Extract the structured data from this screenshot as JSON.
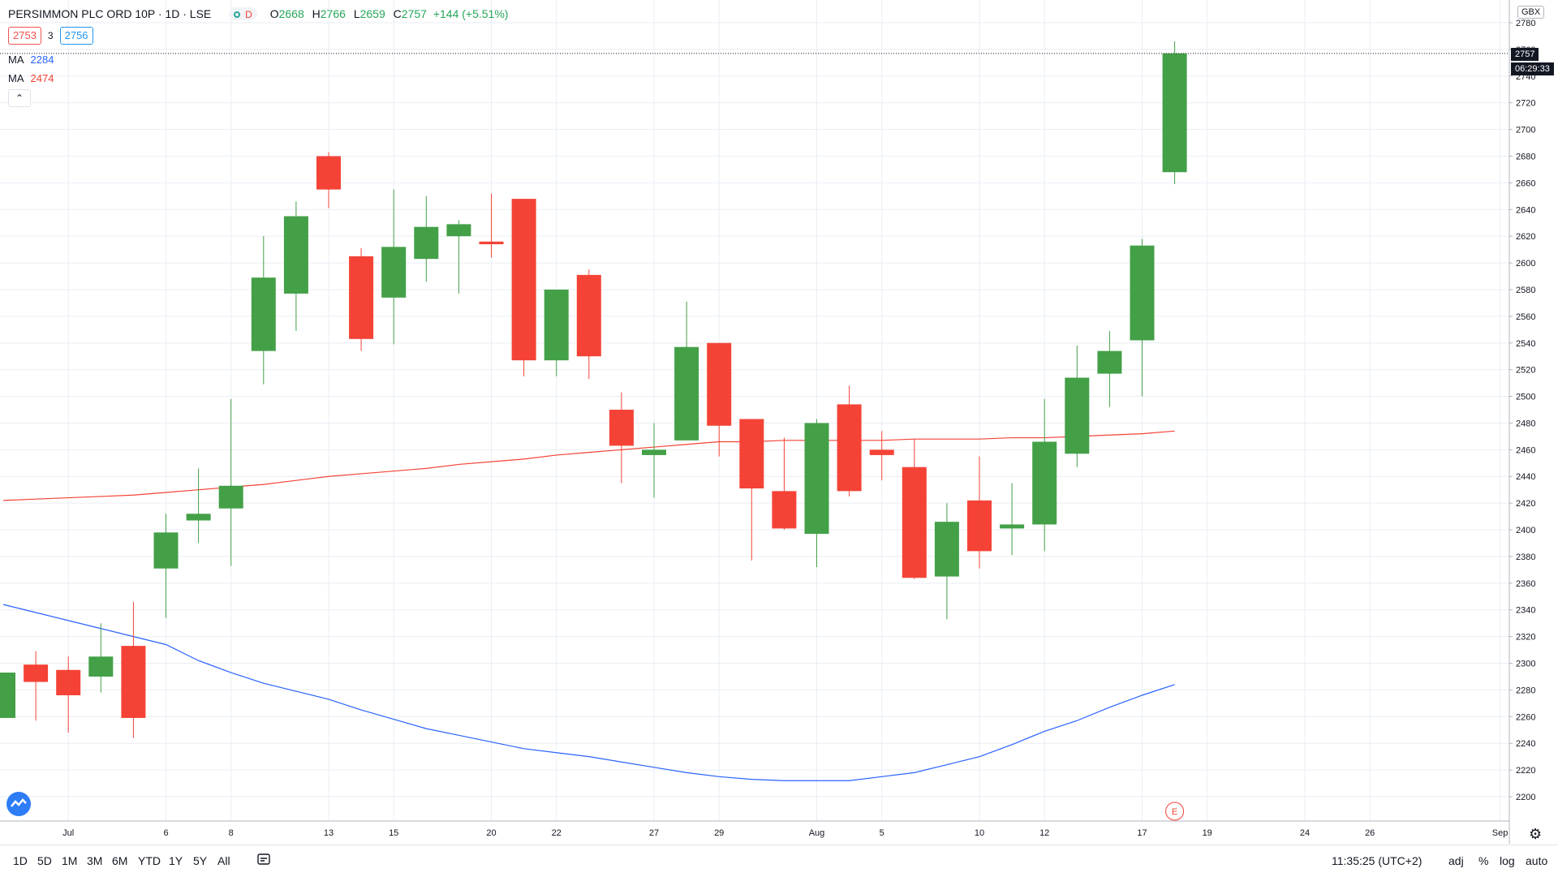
{
  "legend": {
    "title": "PERSIMMON PLC ORD 10P · 1D · LSE",
    "market_status_icon": "market-open-dot",
    "market_letter": "D",
    "open_label": "O",
    "open_value": "2668",
    "high_label": "H",
    "high_value": "2766",
    "low_label": "L",
    "low_value": "2659",
    "close_label": "C",
    "close_value": "2757",
    "change": "+144 (+5.51%)"
  },
  "bidask": {
    "bid": "2753",
    "spread": "3",
    "ask": "2756"
  },
  "indicators": [
    {
      "label": "MA",
      "value": "2284",
      "color": "#2962ff"
    },
    {
      "label": "MA",
      "value": "2474",
      "color": "#f44336"
    }
  ],
  "collapse_icon": "chevron-up-icon",
  "price_axis": {
    "currency": "GBX",
    "last_price": "2757",
    "countdown": "06:29:33"
  },
  "bottom_bar": {
    "timeframes": [
      "1D",
      "5D",
      "1M",
      "3M",
      "6M",
      "YTD",
      "1Y",
      "5Y",
      "All"
    ],
    "date_range_icon": "calendar-range-icon",
    "clock": "11:35:25 (UTC+2)",
    "options": [
      "adj",
      "%",
      "log",
      "auto"
    ]
  },
  "colors": {
    "up": "#43a047",
    "down": "#f44336",
    "ma_fast": "#2962ff",
    "ma_slow": "#f44336",
    "grid": "#e9eef5"
  },
  "chart_data": {
    "type": "candlestick",
    "title": "PERSIMMON PLC ORD 10P · 1D · LSE",
    "ylim": [
      2190,
      2790
    ],
    "y_ticks": [
      2200,
      2220,
      2240,
      2260,
      2280,
      2300,
      2320,
      2340,
      2360,
      2380,
      2400,
      2420,
      2440,
      2460,
      2480,
      2500,
      2520,
      2540,
      2560,
      2580,
      2600,
      2620,
      2640,
      2660,
      2680,
      2700,
      2720,
      2740,
      2760,
      2780
    ],
    "x_ticks": [
      "Jul",
      "6",
      "8",
      "13",
      "15",
      "20",
      "22",
      "27",
      "29",
      "Aug",
      "5",
      "10",
      "12",
      "17",
      "19",
      "24",
      "26",
      "Sep"
    ],
    "x_tick_dates": [
      "2020-07-01",
      "2020-07-06",
      "2020-07-08",
      "2020-07-13",
      "2020-07-15",
      "2020-07-20",
      "2020-07-22",
      "2020-07-27",
      "2020-07-29",
      "2020-08-03",
      "2020-08-05",
      "2020-08-10",
      "2020-08-12",
      "2020-08-17",
      "2020-08-19",
      "2020-08-24",
      "2020-08-26",
      "2020-09-01"
    ],
    "candles": [
      {
        "date": "2020-06-29",
        "open": 2259,
        "high": 2293,
        "low": 2259,
        "close": 2293
      },
      {
        "date": "2020-06-30",
        "open": 2299,
        "high": 2309,
        "low": 2257,
        "close": 2286
      },
      {
        "date": "2020-07-01",
        "open": 2295,
        "high": 2305,
        "low": 2248,
        "close": 2276
      },
      {
        "date": "2020-07-02",
        "open": 2290,
        "high": 2330,
        "low": 2278,
        "close": 2305
      },
      {
        "date": "2020-07-03",
        "open": 2313,
        "high": 2346,
        "low": 2244,
        "close": 2259
      },
      {
        "date": "2020-07-06",
        "open": 2371,
        "high": 2412,
        "low": 2334,
        "close": 2398
      },
      {
        "date": "2020-07-07",
        "open": 2407,
        "high": 2446,
        "low": 2390,
        "close": 2412
      },
      {
        "date": "2020-07-08",
        "open": 2416,
        "high": 2498,
        "low": 2373,
        "close": 2433
      },
      {
        "date": "2020-07-09",
        "open": 2534,
        "high": 2620,
        "low": 2509,
        "close": 2589
      },
      {
        "date": "2020-07-10",
        "open": 2577,
        "high": 2646,
        "low": 2549,
        "close": 2635
      },
      {
        "date": "2020-07-13",
        "open": 2680,
        "high": 2683,
        "low": 2641,
        "close": 2655
      },
      {
        "date": "2020-07-14",
        "open": 2605,
        "high": 2611,
        "low": 2534,
        "close": 2543
      },
      {
        "date": "2020-07-15",
        "open": 2574,
        "high": 2655,
        "low": 2539,
        "close": 2612
      },
      {
        "date": "2020-07-16",
        "open": 2603,
        "high": 2650,
        "low": 2586,
        "close": 2627
      },
      {
        "date": "2020-07-17",
        "open": 2620,
        "high": 2632,
        "low": 2577,
        "close": 2629
      },
      {
        "date": "2020-07-20",
        "open": 2616,
        "high": 2652,
        "low": 2604,
        "close": 2614
      },
      {
        "date": "2020-07-21",
        "open": 2648,
        "high": 2648,
        "low": 2515,
        "close": 2527
      },
      {
        "date": "2020-07-22",
        "open": 2527,
        "high": 2580,
        "low": 2515,
        "close": 2580
      },
      {
        "date": "2020-07-23",
        "open": 2591,
        "high": 2595,
        "low": 2513,
        "close": 2530
      },
      {
        "date": "2020-07-24",
        "open": 2490,
        "high": 2503,
        "low": 2435,
        "close": 2463
      },
      {
        "date": "2020-07-27",
        "open": 2456,
        "high": 2480,
        "low": 2424,
        "close": 2460
      },
      {
        "date": "2020-07-28",
        "open": 2467,
        "high": 2571,
        "low": 2467,
        "close": 2537
      },
      {
        "date": "2020-07-29",
        "open": 2540,
        "high": 2540,
        "low": 2455,
        "close": 2478
      },
      {
        "date": "2020-07-30",
        "open": 2483,
        "high": 2483,
        "low": 2377,
        "close": 2431
      },
      {
        "date": "2020-07-31",
        "open": 2429,
        "high": 2469,
        "low": 2400,
        "close": 2401
      },
      {
        "date": "2020-08-03",
        "open": 2397,
        "high": 2483,
        "low": 2372,
        "close": 2480
      },
      {
        "date": "2020-08-04",
        "open": 2494,
        "high": 2508,
        "low": 2425,
        "close": 2429
      },
      {
        "date": "2020-08-05",
        "open": 2460,
        "high": 2474,
        "low": 2437,
        "close": 2456
      },
      {
        "date": "2020-08-06",
        "open": 2447,
        "high": 2468,
        "low": 2363,
        "close": 2364
      },
      {
        "date": "2020-08-07",
        "open": 2365,
        "high": 2420,
        "low": 2333,
        "close": 2406
      },
      {
        "date": "2020-08-10",
        "open": 2422,
        "high": 2455,
        "low": 2371,
        "close": 2384
      },
      {
        "date": "2020-08-11",
        "open": 2401,
        "high": 2435,
        "low": 2381,
        "close": 2404
      },
      {
        "date": "2020-08-12",
        "open": 2404,
        "high": 2498,
        "low": 2384,
        "close": 2466
      },
      {
        "date": "2020-08-13",
        "open": 2457,
        "high": 2538,
        "low": 2447,
        "close": 2514
      },
      {
        "date": "2020-08-14",
        "open": 2517,
        "high": 2549,
        "low": 2492,
        "close": 2534
      },
      {
        "date": "2020-08-17",
        "open": 2542,
        "high": 2618,
        "low": 2500,
        "close": 2613
      },
      {
        "date": "2020-08-18",
        "open": 2668,
        "high": 2766,
        "low": 2659,
        "close": 2757
      }
    ],
    "series": [
      {
        "name": "MA",
        "values": [
          2344,
          2338,
          2332,
          2326,
          2320,
          2314,
          2302,
          2293,
          2285,
          2279,
          2273,
          2265,
          2258,
          2251,
          2246,
          2241,
          2236,
          2233,
          2230,
          2226,
          2222,
          2218,
          2215,
          2213,
          2212,
          2212,
          2212,
          2215,
          2218,
          2224,
          2230,
          2239,
          2249,
          2257,
          2267,
          2276,
          2284
        ]
      },
      {
        "name": "MA",
        "values": [
          2422,
          2423,
          2424,
          2425,
          2426,
          2428,
          2430,
          2432,
          2434,
          2437,
          2440,
          2442,
          2444,
          2446,
          2449,
          2451,
          2453,
          2456,
          2458,
          2460,
          2462,
          2464,
          2466,
          2466,
          2467,
          2467,
          2467,
          2467,
          2468,
          2468,
          2468,
          2469,
          2469,
          2470,
          2471,
          2472,
          2474
        ]
      }
    ],
    "last_price": 2757,
    "events": [
      {
        "date": "2020-08-18",
        "label": "E"
      }
    ]
  }
}
